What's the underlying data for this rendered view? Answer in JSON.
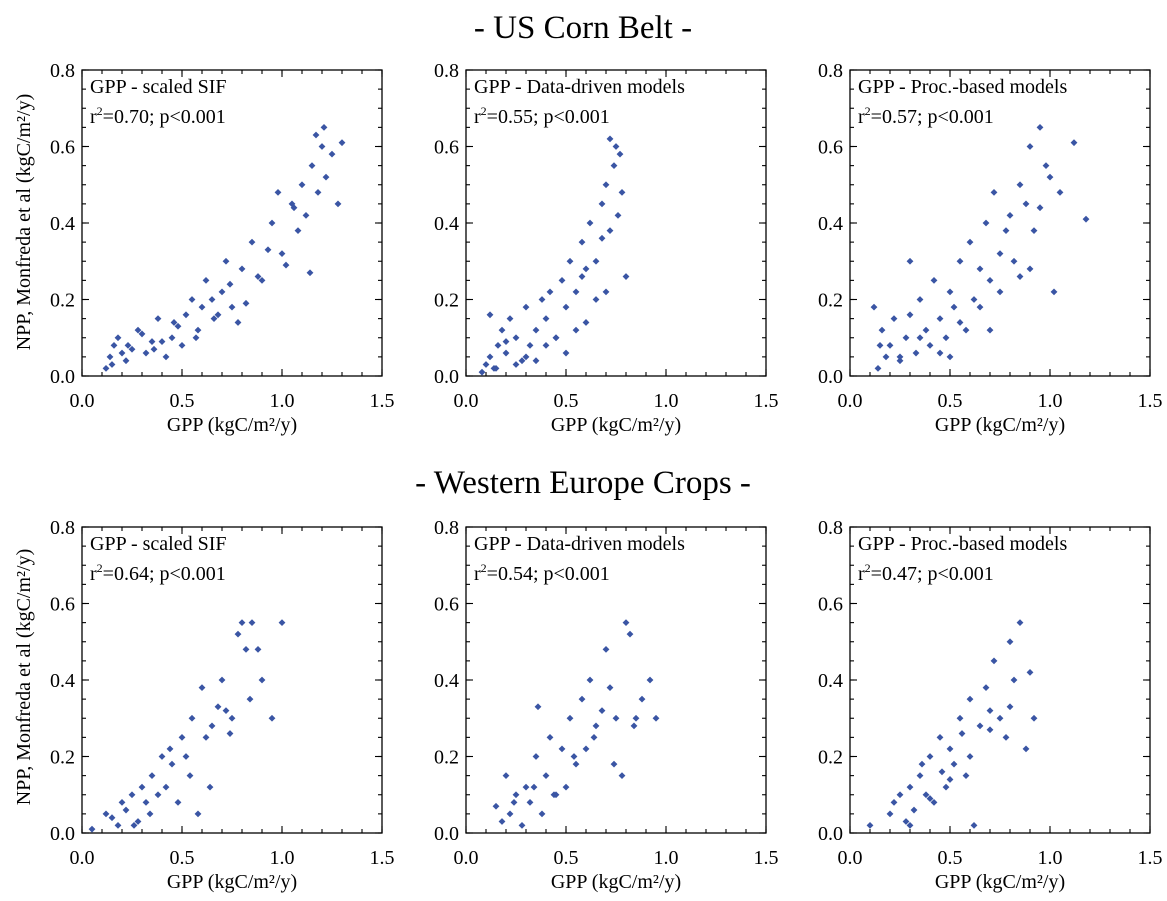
{
  "row_titles": [
    "- US Corn Belt -",
    "- Western Europe Crops -"
  ],
  "x_axis_label": "GPP (kgC/m²/y)",
  "y_axis_label": "NPP, Monfreda et al (kgC/m²/y)",
  "marker_color": "#3a55a4",
  "chart_data": [
    {
      "type": "scatter",
      "region": "- US Corn Belt -",
      "title": "GPP - scaled SIF",
      "stat": {
        "r2": "0.70",
        "p": "p<0.001"
      },
      "xlabel": "GPP (kgC/m²/y)",
      "ylabel": "NPP, Monfreda et al (kgC/m²/y)",
      "xlim": [
        0.0,
        1.5
      ],
      "ylim": [
        0.0,
        0.8
      ],
      "xticks": [
        "0.0",
        "0.5",
        "1.0",
        "1.5"
      ],
      "yticks": [
        "0.0",
        "0.2",
        "0.4",
        "0.6",
        "0.8"
      ],
      "x": [
        0.12,
        0.14,
        0.15,
        0.18,
        0.22,
        0.25,
        0.28,
        0.32,
        0.35,
        0.38,
        0.42,
        0.45,
        0.48,
        0.5,
        0.55,
        0.58,
        0.6,
        0.62,
        0.66,
        0.7,
        0.72,
        0.75,
        0.8,
        0.85,
        0.9,
        0.95,
        1.0,
        1.05,
        1.08,
        1.1,
        1.12,
        1.15,
        1.18,
        1.2,
        1.22,
        1.25,
        1.28,
        1.3,
        0.16,
        0.2,
        0.3,
        0.4,
        0.52,
        0.65,
        0.78,
        0.88,
        0.98,
        1.02,
        1.14,
        0.23,
        0.36,
        0.46,
        0.57,
        0.68,
        0.74,
        0.82,
        0.93,
        1.06,
        1.17,
        1.21
      ],
      "y": [
        0.02,
        0.05,
        0.03,
        0.1,
        0.04,
        0.07,
        0.12,
        0.06,
        0.09,
        0.15,
        0.05,
        0.1,
        0.13,
        0.08,
        0.2,
        0.12,
        0.18,
        0.25,
        0.15,
        0.22,
        0.3,
        0.18,
        0.28,
        0.35,
        0.25,
        0.4,
        0.32,
        0.45,
        0.38,
        0.5,
        0.42,
        0.55,
        0.48,
        0.6,
        0.52,
        0.58,
        0.45,
        0.61,
        0.08,
        0.06,
        0.11,
        0.09,
        0.16,
        0.2,
        0.14,
        0.26,
        0.48,
        0.29,
        0.27,
        0.08,
        0.07,
        0.14,
        0.1,
        0.16,
        0.24,
        0.19,
        0.33,
        0.44,
        0.63,
        0.65
      ]
    },
    {
      "type": "scatter",
      "region": "- US Corn Belt -",
      "title": "GPP - Data-driven models",
      "stat": {
        "r2": "0.55",
        "p": "p<0.001"
      },
      "xlabel": "GPP (kgC/m²/y)",
      "ylabel": "NPP, Monfreda et al (kgC/m²/y)",
      "xlim": [
        0.0,
        1.5
      ],
      "ylim": [
        0.0,
        0.8
      ],
      "xticks": [
        "0.0",
        "0.5",
        "1.0",
        "1.5"
      ],
      "yticks": [
        "0.0",
        "0.2",
        "0.4",
        "0.6",
        "0.8"
      ],
      "x": [
        0.08,
        0.1,
        0.12,
        0.14,
        0.16,
        0.18,
        0.2,
        0.22,
        0.25,
        0.28,
        0.3,
        0.32,
        0.35,
        0.38,
        0.4,
        0.42,
        0.45,
        0.48,
        0.5,
        0.52,
        0.55,
        0.58,
        0.6,
        0.62,
        0.65,
        0.68,
        0.7,
        0.72,
        0.74,
        0.75,
        0.76,
        0.78,
        0.8,
        0.12,
        0.2,
        0.3,
        0.4,
        0.5,
        0.6,
        0.7,
        0.15,
        0.25,
        0.35,
        0.45,
        0.55,
        0.65,
        0.72,
        0.77,
        0.68,
        0.58
      ],
      "y": [
        0.01,
        0.03,
        0.05,
        0.02,
        0.08,
        0.12,
        0.06,
        0.15,
        0.1,
        0.04,
        0.18,
        0.08,
        0.12,
        0.2,
        0.15,
        0.22,
        0.1,
        0.25,
        0.18,
        0.3,
        0.22,
        0.35,
        0.28,
        0.4,
        0.3,
        0.45,
        0.5,
        0.38,
        0.55,
        0.6,
        0.42,
        0.48,
        0.26,
        0.16,
        0.09,
        0.05,
        0.08,
        0.06,
        0.14,
        0.22,
        0.02,
        0.03,
        0.04,
        0.1,
        0.12,
        0.2,
        0.62,
        0.58,
        0.36,
        0.26
      ]
    },
    {
      "type": "scatter",
      "region": "- US Corn Belt -",
      "title": "GPP - Proc.-based models",
      "stat": {
        "r2": "0.57",
        "p": "p<0.001"
      },
      "xlabel": "GPP (kgC/m²/y)",
      "ylabel": "NPP, Monfreda et al (kgC/m²/y)",
      "xlim": [
        0.0,
        1.5
      ],
      "ylim": [
        0.0,
        0.8
      ],
      "xticks": [
        "0.0",
        "0.5",
        "1.0",
        "1.5"
      ],
      "yticks": [
        "0.0",
        "0.2",
        "0.4",
        "0.6",
        "0.8"
      ],
      "x": [
        0.12,
        0.14,
        0.16,
        0.18,
        0.2,
        0.22,
        0.25,
        0.28,
        0.3,
        0.33,
        0.35,
        0.38,
        0.4,
        0.42,
        0.45,
        0.48,
        0.5,
        0.52,
        0.55,
        0.58,
        0.6,
        0.62,
        0.65,
        0.68,
        0.7,
        0.72,
        0.75,
        0.78,
        0.8,
        0.82,
        0.85,
        0.88,
        0.9,
        0.92,
        0.95,
        0.98,
        1.0,
        1.02,
        1.05,
        1.12,
        1.18,
        0.15,
        0.25,
        0.35,
        0.45,
        0.55,
        0.65,
        0.75,
        0.85,
        0.95,
        0.3,
        0.5,
        0.7,
        0.9
      ],
      "y": [
        0.18,
        0.02,
        0.12,
        0.05,
        0.08,
        0.15,
        0.04,
        0.1,
        0.3,
        0.06,
        0.2,
        0.12,
        0.08,
        0.25,
        0.15,
        0.1,
        0.22,
        0.18,
        0.3,
        0.12,
        0.35,
        0.2,
        0.28,
        0.4,
        0.25,
        0.48,
        0.32,
        0.38,
        0.42,
        0.3,
        0.5,
        0.45,
        0.6,
        0.38,
        0.65,
        0.55,
        0.52,
        0.22,
        0.48,
        0.61,
        0.41,
        0.08,
        0.05,
        0.1,
        0.06,
        0.14,
        0.18,
        0.22,
        0.26,
        0.44,
        0.16,
        0.05,
        0.12,
        0.28
      ]
    },
    {
      "type": "scatter",
      "region": "- Western Europe Crops -",
      "title": "GPP - scaled SIF",
      "stat": {
        "r2": "0.64",
        "p": "p<0.001"
      },
      "xlabel": "GPP (kgC/m²/y)",
      "ylabel": "NPP, Monfreda et al (kgC/m²/y)",
      "xlim": [
        0.0,
        1.5
      ],
      "ylim": [
        0.0,
        0.8
      ],
      "xticks": [
        "0.0",
        "0.5",
        "1.0",
        "1.5"
      ],
      "yticks": [
        "0.0",
        "0.2",
        "0.4",
        "0.6",
        "0.8"
      ],
      "x": [
        0.05,
        0.12,
        0.15,
        0.18,
        0.2,
        0.22,
        0.25,
        0.28,
        0.3,
        0.32,
        0.35,
        0.38,
        0.4,
        0.42,
        0.45,
        0.48,
        0.5,
        0.52,
        0.55,
        0.58,
        0.6,
        0.62,
        0.65,
        0.68,
        0.7,
        0.72,
        0.75,
        0.78,
        0.8,
        0.82,
        0.85,
        0.88,
        0.9,
        0.95,
        1.0,
        0.26,
        0.34,
        0.44,
        0.54,
        0.64,
        0.74,
        0.84
      ],
      "y": [
        0.01,
        0.05,
        0.04,
        0.02,
        0.08,
        0.06,
        0.1,
        0.03,
        0.12,
        0.08,
        0.15,
        0.1,
        0.2,
        0.12,
        0.18,
        0.08,
        0.25,
        0.2,
        0.3,
        0.05,
        0.38,
        0.25,
        0.28,
        0.33,
        0.4,
        0.32,
        0.3,
        0.52,
        0.55,
        0.48,
        0.55,
        0.48,
        0.4,
        0.3,
        0.55,
        0.02,
        0.05,
        0.22,
        0.15,
        0.12,
        0.26,
        0.35
      ]
    },
    {
      "type": "scatter",
      "region": "- Western Europe Crops -",
      "title": "GPP - Data-driven models",
      "stat": {
        "r2": "0.54",
        "p": "p<0.001"
      },
      "xlabel": "GPP (kgC/m²/y)",
      "ylabel": "NPP, Monfreda et al (kgC/m²/y)",
      "xlim": [
        0.0,
        1.5
      ],
      "ylim": [
        0.0,
        0.8
      ],
      "xticks": [
        "0.0",
        "0.5",
        "1.0",
        "1.5"
      ],
      "yticks": [
        "0.0",
        "0.2",
        "0.4",
        "0.6",
        "0.8"
      ],
      "x": [
        0.15,
        0.18,
        0.2,
        0.22,
        0.25,
        0.28,
        0.3,
        0.32,
        0.35,
        0.38,
        0.4,
        0.42,
        0.45,
        0.48,
        0.5,
        0.52,
        0.55,
        0.58,
        0.6,
        0.62,
        0.65,
        0.68,
        0.7,
        0.72,
        0.75,
        0.78,
        0.8,
        0.82,
        0.85,
        0.88,
        0.92,
        0.95,
        0.24,
        0.34,
        0.44,
        0.54,
        0.64,
        0.74,
        0.84,
        0.36
      ],
      "y": [
        0.07,
        0.03,
        0.15,
        0.05,
        0.1,
        0.02,
        0.12,
        0.08,
        0.2,
        0.05,
        0.15,
        0.25,
        0.1,
        0.22,
        0.12,
        0.3,
        0.18,
        0.35,
        0.22,
        0.4,
        0.28,
        0.32,
        0.48,
        0.38,
        0.3,
        0.15,
        0.55,
        0.52,
        0.3,
        0.35,
        0.4,
        0.3,
        0.08,
        0.12,
        0.1,
        0.2,
        0.25,
        0.18,
        0.28,
        0.33
      ]
    },
    {
      "type": "scatter",
      "region": "- Western Europe Crops -",
      "title": "GPP - Proc.-based models",
      "stat": {
        "r2": "0.47",
        "p": "p<0.001"
      },
      "xlabel": "GPP (kgC/m²/y)",
      "ylabel": "NPP, Monfreda et al (kgC/m²/y)",
      "xlim": [
        0.0,
        1.5
      ],
      "ylim": [
        0.0,
        0.8
      ],
      "xticks": [
        "0.0",
        "0.5",
        "1.0",
        "1.5"
      ],
      "yticks": [
        "0.0",
        "0.2",
        "0.4",
        "0.6",
        "0.8"
      ],
      "x": [
        0.1,
        0.2,
        0.22,
        0.25,
        0.28,
        0.3,
        0.32,
        0.35,
        0.38,
        0.4,
        0.42,
        0.45,
        0.48,
        0.5,
        0.52,
        0.55,
        0.58,
        0.6,
        0.62,
        0.65,
        0.68,
        0.7,
        0.72,
        0.75,
        0.78,
        0.8,
        0.82,
        0.85,
        0.88,
        0.9,
        0.92,
        0.3,
        0.4,
        0.5,
        0.6,
        0.7,
        0.8,
        0.36,
        0.46,
        0.56
      ],
      "y": [
        0.02,
        0.05,
        0.08,
        0.1,
        0.03,
        0.12,
        0.06,
        0.15,
        0.1,
        0.2,
        0.08,
        0.25,
        0.12,
        0.22,
        0.18,
        0.3,
        0.15,
        0.35,
        0.02,
        0.28,
        0.38,
        0.32,
        0.45,
        0.3,
        0.25,
        0.5,
        0.4,
        0.55,
        0.22,
        0.42,
        0.3,
        0.02,
        0.09,
        0.14,
        0.2,
        0.27,
        0.33,
        0.18,
        0.16,
        0.26
      ]
    }
  ]
}
